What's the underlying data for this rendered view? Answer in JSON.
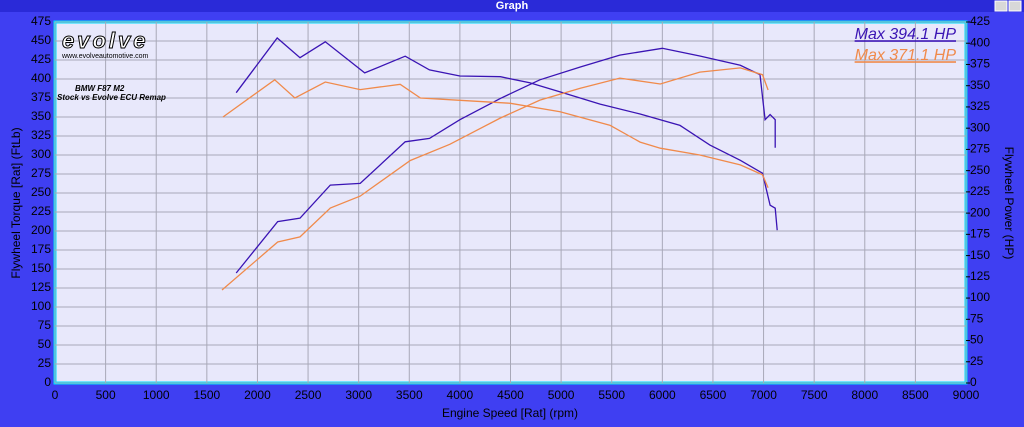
{
  "window_title": "Graph",
  "chart_data": {
    "type": "line",
    "xlabel": "Engine Speed [Rat] (rpm)",
    "ylabel": "Flywheel Torque [Rat] (FtLb)",
    "y2label": "Flywheel Power (HP)",
    "annotations": [
      "Max 394.1 HP",
      "Max 371.1 HP"
    ],
    "annotation_colors": [
      "#3a14b4",
      "#f08a4b"
    ],
    "logo": "evolve",
    "logo_url": "www.evolveautomotive.com",
    "subtitle_lines": [
      "BMW F87 M2",
      "Stock vs Evolve ECU Remap"
    ],
    "xlim": [
      0,
      9000
    ],
    "xticks": [
      0,
      500,
      1000,
      1500,
      2000,
      2500,
      3000,
      3500,
      4000,
      4500,
      5000,
      5500,
      6000,
      6500,
      7000,
      7500,
      8000,
      8500,
      9000
    ],
    "ylim": [
      0,
      475
    ],
    "yticks": [
      0,
      25,
      50,
      75,
      100,
      125,
      150,
      175,
      200,
      225,
      250,
      275,
      300,
      325,
      350,
      375,
      400,
      425,
      450,
      475
    ],
    "y2lim": [
      0,
      425
    ],
    "y2ticks": [
      0,
      25,
      50,
      75,
      100,
      125,
      150,
      175,
      200,
      225,
      250,
      275,
      300,
      325,
      350,
      375,
      400,
      425
    ],
    "grid": true,
    "series": [
      {
        "color": "#3a14b4",
        "x": [
          1790,
          2195,
          2420,
          2670,
          3060,
          3460,
          3700,
          4000,
          4400,
          4690,
          4990,
          5385,
          5780,
          6175,
          6470,
          6770,
          6990,
          7065,
          7115,
          7135
        ],
        "values": [
          382,
          454,
          428,
          449,
          408,
          430,
          412,
          404,
          403,
          395,
          383,
          367,
          354,
          339,
          313,
          293,
          276,
          234,
          230,
          201
        ]
      },
      {
        "color": "#3a14b4",
        "axis": "y2",
        "x": [
          1790,
          2200,
          2420,
          2720,
          3015,
          3460,
          3700,
          4000,
          4400,
          4790,
          5190,
          5580,
          6000,
          6370,
          6770,
          6965,
          7015,
          7065,
          7115,
          7115
        ],
        "values": [
          129.5,
          190,
          194,
          233,
          235,
          284,
          288,
          310,
          335,
          357,
          372,
          386,
          394,
          385,
          374,
          363,
          310,
          316,
          310,
          277
        ]
      },
      {
        "color": "#f08a4b",
        "x": [
          1660,
          2170,
          2370,
          2670,
          3015,
          3410,
          3610,
          4000,
          4500,
          4990,
          5485,
          5780,
          5980,
          6370,
          6770,
          6990,
          7045
        ],
        "values": [
          350,
          399,
          375,
          396,
          386,
          393,
          375,
          372,
          368,
          357,
          339,
          317,
          309,
          300,
          287,
          274,
          257
        ]
      },
      {
        "color": "#f08a4b",
        "axis": "y2",
        "x": [
          1650,
          2200,
          2420,
          2720,
          3015,
          3510,
          3900,
          4400,
          4790,
          5190,
          5580,
          5980,
          6370,
          6770,
          6990,
          7045
        ],
        "values": [
          109.5,
          166,
          172,
          206,
          220,
          262,
          281,
          312,
          333,
          347,
          359,
          352,
          366,
          371,
          363,
          345
        ]
      }
    ]
  }
}
